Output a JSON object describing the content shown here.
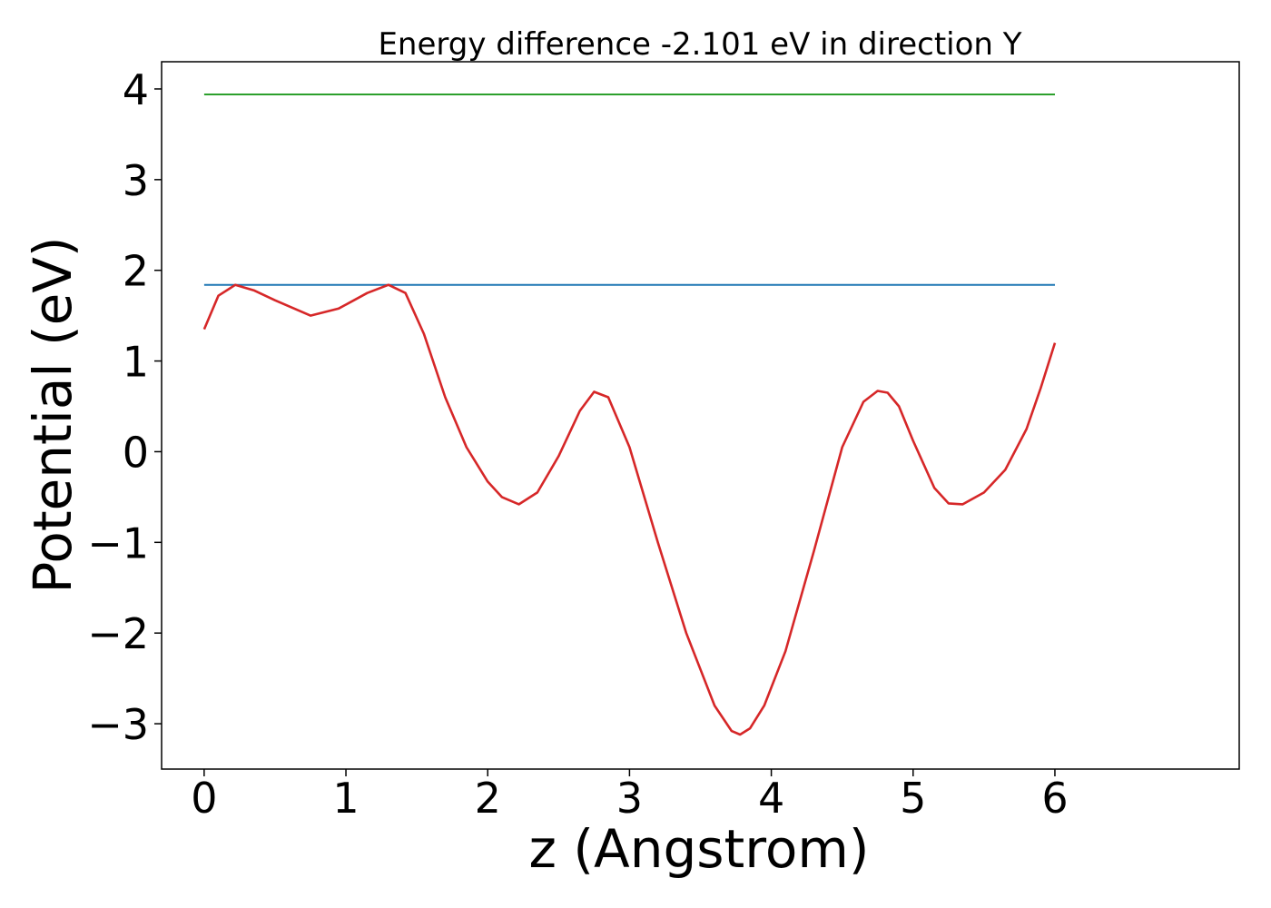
{
  "chart_data": {
    "type": "line",
    "title": "Energy difference -2.101 eV in direction Y",
    "xlabel": "z (Angstrom)",
    "ylabel": "Potential (eV)",
    "xlim": [
      -0.3,
      7.3
    ],
    "ylim": [
      -3.5,
      4.3
    ],
    "xticks": [
      0,
      1,
      2,
      3,
      4,
      5,
      6
    ],
    "xtick_labels": [
      "0",
      "1",
      "2",
      "3",
      "4",
      "5",
      "6"
    ],
    "yticks": [
      -3,
      -2,
      -1,
      0,
      1,
      2,
      3,
      4
    ],
    "ytick_labels": [
      "−3",
      "−2",
      "−1",
      "0",
      "1",
      "2",
      "3",
      "4"
    ],
    "grid": false,
    "series": [
      {
        "color": "#2ca02c",
        "x": [
          0,
          6
        ],
        "y": [
          3.94,
          3.94
        ]
      },
      {
        "color": "#1f77b4",
        "x": [
          0,
          6
        ],
        "y": [
          1.84,
          1.84
        ]
      },
      {
        "color": "#d62728",
        "x": [
          0,
          0.1,
          0.22,
          0.35,
          0.5,
          0.75,
          0.95,
          1.15,
          1.3,
          1.42,
          1.55,
          1.7,
          1.85,
          2.0,
          2.1,
          2.22,
          2.35,
          2.5,
          2.65,
          2.75,
          2.85,
          3.0,
          3.2,
          3.4,
          3.6,
          3.72,
          3.78,
          3.85,
          3.95,
          4.1,
          4.3,
          4.5,
          4.65,
          4.75,
          4.82,
          4.9,
          5.0,
          5.15,
          5.25,
          5.35,
          5.5,
          5.65,
          5.8,
          5.9,
          6.0
        ],
        "y": [
          1.35,
          1.72,
          1.84,
          1.78,
          1.67,
          1.5,
          1.58,
          1.75,
          1.84,
          1.75,
          1.3,
          0.6,
          0.05,
          -0.33,
          -0.5,
          -0.58,
          -0.45,
          -0.05,
          0.45,
          0.66,
          0.6,
          0.05,
          -1.0,
          -2.0,
          -2.8,
          -3.08,
          -3.12,
          -3.05,
          -2.8,
          -2.2,
          -1.1,
          0.05,
          0.55,
          0.67,
          0.65,
          0.5,
          0.12,
          -0.4,
          -0.57,
          -0.58,
          -0.45,
          -0.2,
          0.25,
          0.7,
          1.2
        ]
      }
    ]
  }
}
